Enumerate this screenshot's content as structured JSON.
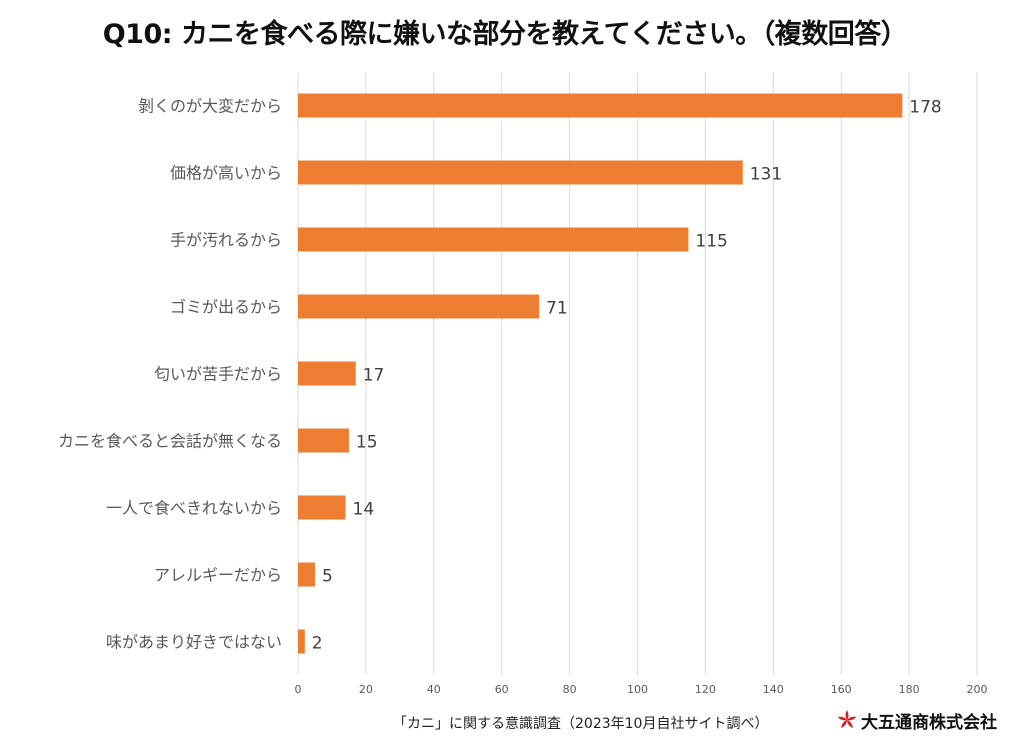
{
  "title": "Q10: カニを食べる際に嫌いな部分を教えてください。（複数回答）",
  "chart_data": {
    "type": "bar",
    "orientation": "horizontal",
    "title": "Q10: カニを食べる際に嫌いな部分を教えてください。（複数回答）",
    "categories": [
      "剝くのが大変だから",
      "価格が高いから",
      "手が汚れるから",
      "ゴミが出るから",
      "匂いが苦手だから",
      "カニを食べると会話が無くなる",
      "一人で食べきれないから",
      "アレルギーだから",
      "味があまり好きではない"
    ],
    "values": [
      178,
      131,
      115,
      71,
      17,
      15,
      14,
      5,
      2
    ],
    "xlim": [
      0,
      200
    ],
    "ticks": [
      0,
      20,
      40,
      60,
      80,
      100,
      120,
      140,
      160,
      180,
      200
    ],
    "bar_color": "#ed7d31",
    "grid_color": "#d9d9d9",
    "xlabel": "",
    "ylabel": ""
  },
  "footer": {
    "note": "「カニ」に関する意識調査（2023年10月自社サイト調べ）",
    "brand": "大五通商株式会社",
    "brand_mark": "star-logo",
    "brand_color": "#d62020"
  }
}
